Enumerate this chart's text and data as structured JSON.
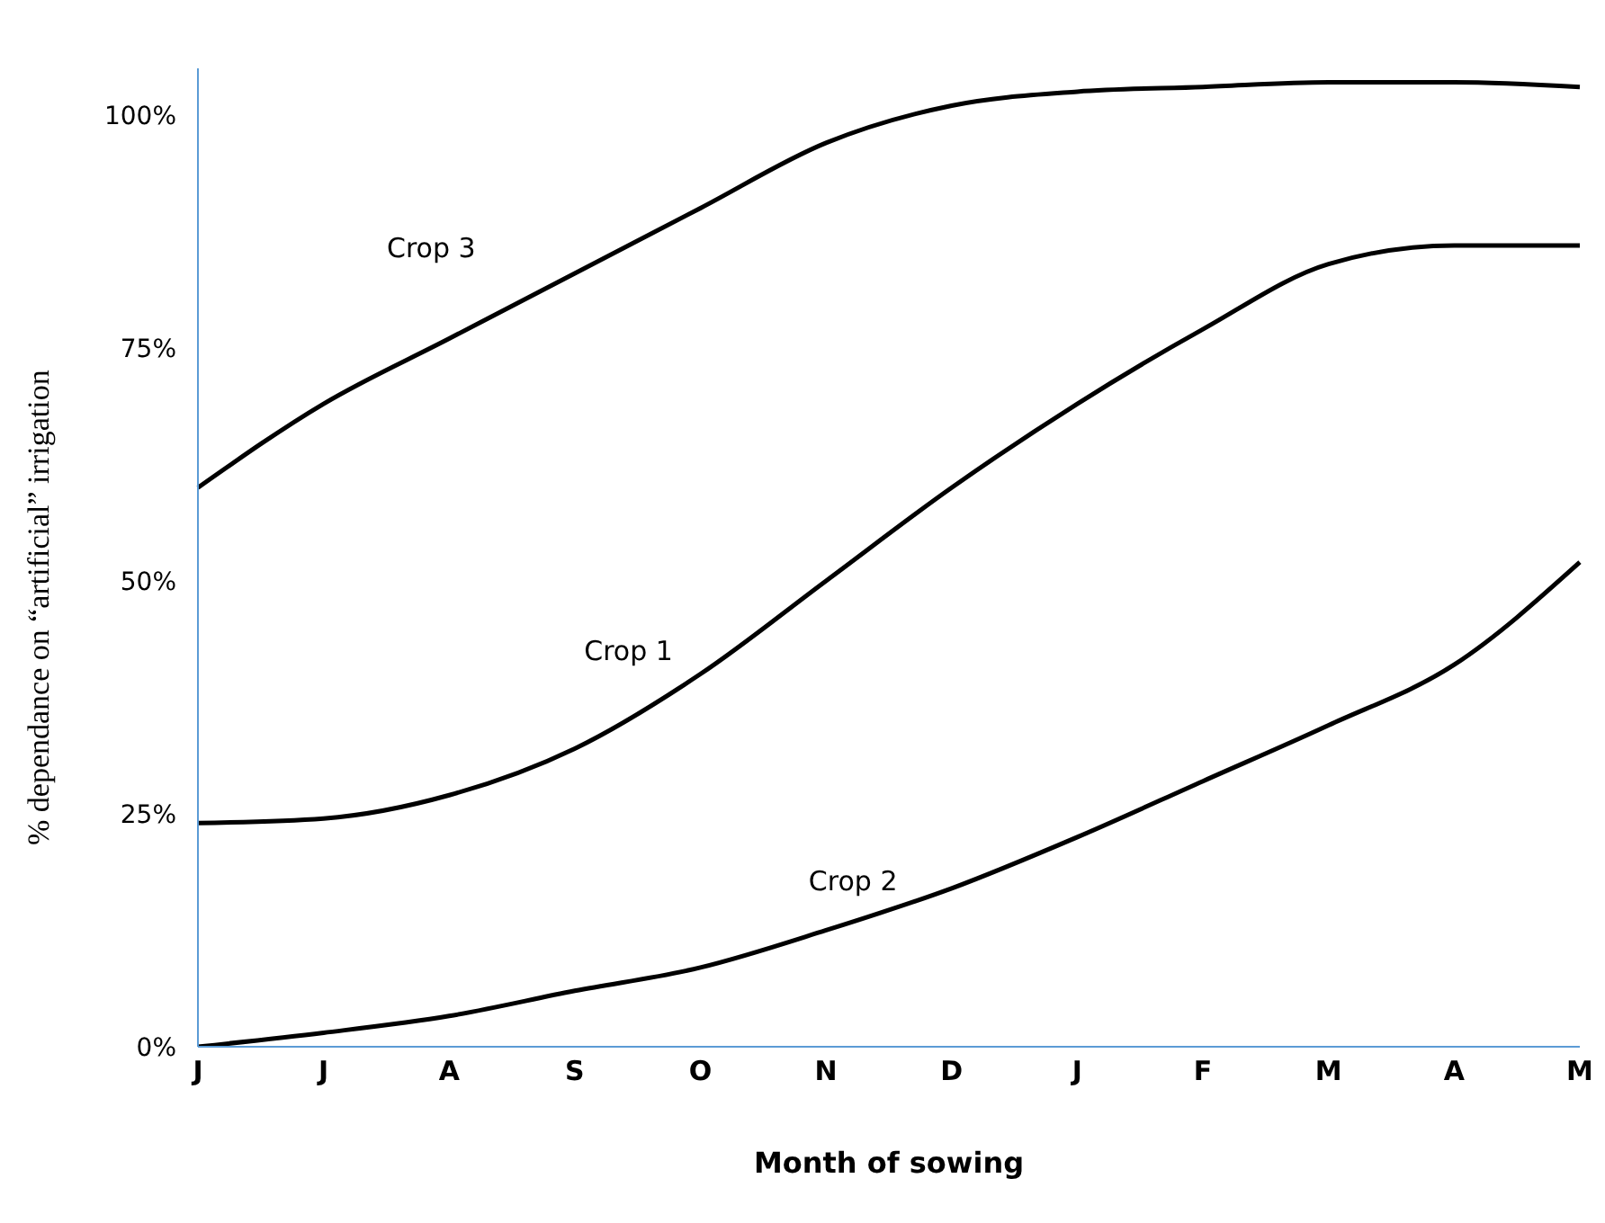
{
  "chart_data": {
    "type": "line",
    "xlabel": "Month of sowing",
    "ylabel": "% dependance on “artificial” irrigation",
    "categories": [
      "J",
      "J",
      "A",
      "S",
      "O",
      "N",
      "D",
      "J",
      "F",
      "M",
      "A",
      "M"
    ],
    "series": [
      {
        "name": "Crop 3",
        "color": "#000000",
        "values": [
          60,
          69,
          76,
          83,
          90,
          97,
          101,
          102.5,
          103,
          103.5,
          103.5,
          103
        ]
      },
      {
        "name": "Crop 1",
        "color": "#000000",
        "values": [
          24,
          24.5,
          27,
          32,
          40,
          50,
          60,
          69,
          77,
          84,
          86,
          86
        ]
      },
      {
        "name": "Crop 2",
        "color": "#000000",
        "values": [
          0,
          1.5,
          3.3,
          6,
          8.5,
          12.5,
          17,
          22.5,
          28.5,
          34.5,
          41,
          52
        ]
      }
    ],
    "ylim": [
      0,
      105
    ],
    "yticks": [
      {
        "value": 0,
        "label": "0%"
      },
      {
        "value": 25,
        "label": "25%"
      },
      {
        "value": 50,
        "label": "50%"
      },
      {
        "value": 75,
        "label": "75%"
      },
      {
        "value": 100,
        "label": "100%"
      }
    ],
    "grid": false,
    "legend": false,
    "marker": "none",
    "line_style": "solid"
  }
}
